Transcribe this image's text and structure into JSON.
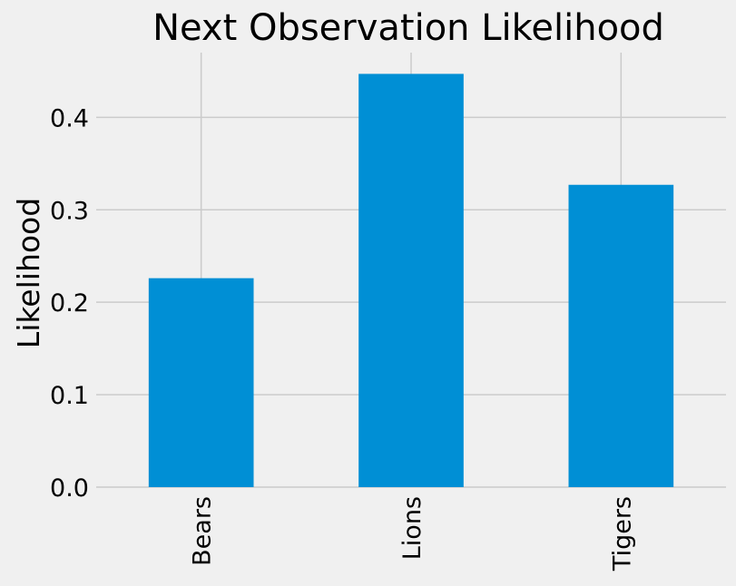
{
  "chart_data": {
    "type": "bar",
    "title": "Next Observation Likelihood",
    "xlabel": "",
    "ylabel": "Likelihood",
    "categories": [
      "Bears",
      "Lions",
      "Tigers"
    ],
    "values": [
      0.226,
      0.447,
      0.327
    ],
    "ylim": [
      0,
      0.47
    ],
    "yticks": [
      "0.0",
      "0.1",
      "0.2",
      "0.3",
      "0.4"
    ],
    "grid": true,
    "bar_color": "#008fd5",
    "background": "#f0f0f0",
    "grid_color": "#cbcbcb"
  }
}
